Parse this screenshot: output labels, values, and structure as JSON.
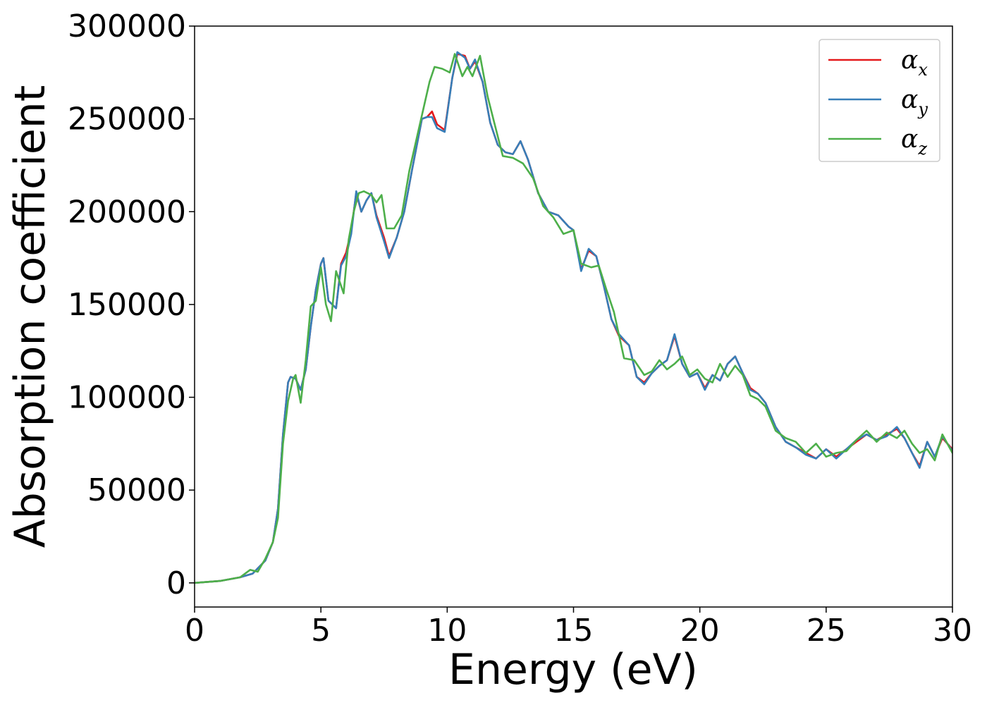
{
  "chart_data": {
    "type": "line",
    "title": "",
    "xlabel": "Energy (eV)",
    "ylabel": "Absorption coefficient",
    "xlim": [
      0,
      30
    ],
    "ylim": [
      -13000,
      300000
    ],
    "xticks": [
      0,
      5,
      10,
      15,
      20,
      25,
      30
    ],
    "yticks": [
      0,
      50000,
      100000,
      150000,
      200000,
      250000,
      300000
    ],
    "grid": false,
    "legend_placement": "top-right",
    "series": [
      {
        "name": "α_x",
        "symbol": "α",
        "subscript": "x",
        "color": "#e41a1c",
        "x": [
          0,
          1,
          1.8,
          2.3,
          2.8,
          3.1,
          3.3,
          3.5,
          3.7,
          3.8,
          4.0,
          4.2,
          4.4,
          4.6,
          4.8,
          5.0,
          5.1,
          5.3,
          5.6,
          5.8,
          6.0,
          6.2,
          6.4,
          6.6,
          6.8,
          7.0,
          7.2,
          7.5,
          7.7,
          8.0,
          8.3,
          8.6,
          9.0,
          9.2,
          9.4,
          9.6,
          9.9,
          10.2,
          10.4,
          10.7,
          10.9,
          11.1,
          11.4,
          11.7,
          12.0,
          12.3,
          12.6,
          12.9,
          13.2,
          13.6,
          14.0,
          14.4,
          14.8,
          15.0,
          15.3,
          15.6,
          15.9,
          16.2,
          16.5,
          16.8,
          17.2,
          17.5,
          17.8,
          18.1,
          18.4,
          18.7,
          19.0,
          19.3,
          19.6,
          19.9,
          20.2,
          20.5,
          20.8,
          21.1,
          21.4,
          21.7,
          22.0,
          22.3,
          22.6,
          23.0,
          23.4,
          23.8,
          24.2,
          24.6,
          25.0,
          25.4,
          25.8,
          26.2,
          26.6,
          27.0,
          27.4,
          27.8,
          28.1,
          28.4,
          28.7,
          29.0,
          29.3,
          29.6,
          30
        ],
        "y": [
          0,
          1000,
          3000,
          5000,
          12000,
          22000,
          40000,
          80000,
          108000,
          111000,
          110000,
          104000,
          115000,
          138000,
          158000,
          172000,
          175000,
          152000,
          148000,
          172000,
          178000,
          190000,
          210000,
          200000,
          206000,
          210000,
          198000,
          186000,
          176000,
          186000,
          200000,
          222000,
          250000,
          251000,
          254000,
          247000,
          244000,
          272000,
          285000,
          284000,
          277000,
          281000,
          270000,
          248000,
          236000,
          232000,
          231000,
          238000,
          228000,
          210000,
          200000,
          198000,
          192000,
          190000,
          169000,
          179000,
          176000,
          160000,
          142000,
          133000,
          128000,
          111000,
          108000,
          113000,
          117000,
          120000,
          133000,
          118000,
          111000,
          113000,
          105000,
          112000,
          109000,
          118000,
          122000,
          113000,
          105000,
          102000,
          97000,
          84000,
          76000,
          73000,
          70000,
          67000,
          72000,
          68000,
          72000,
          76000,
          80000,
          77000,
          80000,
          83000,
          78000,
          70000,
          63000,
          76000,
          68000,
          78000,
          72000
        ]
      },
      {
        "name": "α_y",
        "symbol": "α",
        "subscript": "y",
        "color": "#377eb8",
        "x": [
          0,
          1,
          1.8,
          2.3,
          2.8,
          3.1,
          3.3,
          3.5,
          3.7,
          3.8,
          4.0,
          4.2,
          4.4,
          4.6,
          4.8,
          5.0,
          5.1,
          5.3,
          5.6,
          5.8,
          6.0,
          6.2,
          6.4,
          6.6,
          6.8,
          7.0,
          7.2,
          7.5,
          7.7,
          8.0,
          8.3,
          8.6,
          9.0,
          9.2,
          9.4,
          9.6,
          9.9,
          10.2,
          10.4,
          10.7,
          10.9,
          11.1,
          11.4,
          11.7,
          12.0,
          12.3,
          12.6,
          12.9,
          13.2,
          13.6,
          14.0,
          14.4,
          14.8,
          15.0,
          15.3,
          15.6,
          15.9,
          16.2,
          16.5,
          16.8,
          17.2,
          17.5,
          17.8,
          18.1,
          18.4,
          18.7,
          19.0,
          19.3,
          19.6,
          19.9,
          20.2,
          20.5,
          20.8,
          21.1,
          21.4,
          21.7,
          22.0,
          22.3,
          22.6,
          23.0,
          23.4,
          23.8,
          24.2,
          24.6,
          25.0,
          25.4,
          25.8,
          26.2,
          26.6,
          27.0,
          27.4,
          27.8,
          28.1,
          28.4,
          28.7,
          29.0,
          29.3,
          29.6,
          30
        ],
        "y": [
          0,
          1000,
          3000,
          5000,
          12000,
          22000,
          40000,
          80000,
          108000,
          111000,
          110000,
          104000,
          115000,
          138000,
          158000,
          172000,
          175000,
          152000,
          148000,
          171000,
          176000,
          188000,
          211000,
          200000,
          206000,
          210000,
          197000,
          184000,
          175000,
          186000,
          200000,
          222000,
          250000,
          251000,
          251000,
          245000,
          243000,
          272000,
          286000,
          283000,
          277000,
          282000,
          270000,
          248000,
          236000,
          232000,
          231000,
          238000,
          228000,
          210000,
          200000,
          198000,
          192000,
          190000,
          168000,
          180000,
          176000,
          160000,
          142000,
          134000,
          128000,
          111000,
          107000,
          113000,
          117000,
          120000,
          134000,
          118000,
          111000,
          113000,
          104000,
          112000,
          109000,
          118000,
          122000,
          113000,
          104000,
          102000,
          97000,
          84000,
          76000,
          73000,
          69000,
          67000,
          72000,
          67000,
          72000,
          77000,
          80000,
          77000,
          79000,
          84000,
          78000,
          70000,
          62000,
          76000,
          68000,
          79000,
          71000
        ]
      },
      {
        "name": "α_z",
        "symbol": "α",
        "subscript": "z",
        "color": "#4daf4a",
        "x": [
          0,
          1,
          1.8,
          2.2,
          2.5,
          2.8,
          3.1,
          3.3,
          3.5,
          3.7,
          3.9,
          4.0,
          4.2,
          4.4,
          4.6,
          4.8,
          5.0,
          5.2,
          5.4,
          5.6,
          5.9,
          6.1,
          6.3,
          6.5,
          6.7,
          7.0,
          7.2,
          7.4,
          7.6,
          7.9,
          8.2,
          8.5,
          8.8,
          9.1,
          9.3,
          9.5,
          9.8,
          10.1,
          10.3,
          10.6,
          10.8,
          11.0,
          11.3,
          11.6,
          11.9,
          12.2,
          12.6,
          13.0,
          13.4,
          13.8,
          14.2,
          14.6,
          15.0,
          15.3,
          15.7,
          16.0,
          16.3,
          16.6,
          17.0,
          17.4,
          17.8,
          18.1,
          18.4,
          18.7,
          19.0,
          19.3,
          19.6,
          19.9,
          20.2,
          20.5,
          20.8,
          21.1,
          21.4,
          21.7,
          22.0,
          22.3,
          22.6,
          23.0,
          23.4,
          23.8,
          24.2,
          24.6,
          25.0,
          25.4,
          25.8,
          26.2,
          26.6,
          27.0,
          27.4,
          27.8,
          28.1,
          28.4,
          28.7,
          29.0,
          29.3,
          29.6,
          30
        ],
        "y": [
          0,
          1000,
          3000,
          7000,
          6000,
          13000,
          22000,
          35000,
          75000,
          98000,
          110000,
          112000,
          97000,
          120000,
          149000,
          152000,
          170000,
          150000,
          141000,
          168000,
          156000,
          185000,
          200000,
          210000,
          211000,
          209000,
          205000,
          209000,
          191000,
          191000,
          198000,
          222000,
          240000,
          258000,
          270000,
          278000,
          277000,
          275000,
          285000,
          273000,
          278000,
          273000,
          284000,
          262000,
          246000,
          230000,
          229000,
          226000,
          218000,
          203000,
          197000,
          188000,
          190000,
          172000,
          170000,
          171000,
          158000,
          146000,
          121000,
          120000,
          112000,
          114000,
          120000,
          115000,
          118000,
          122000,
          112000,
          115000,
          110000,
          108000,
          118000,
          111000,
          117000,
          112000,
          101000,
          99000,
          95000,
          82000,
          78000,
          76000,
          70000,
          75000,
          68000,
          70000,
          71000,
          77000,
          82000,
          76000,
          81000,
          78000,
          82000,
          75000,
          70000,
          72000,
          66000,
          80000,
          70000
        ]
      }
    ]
  }
}
